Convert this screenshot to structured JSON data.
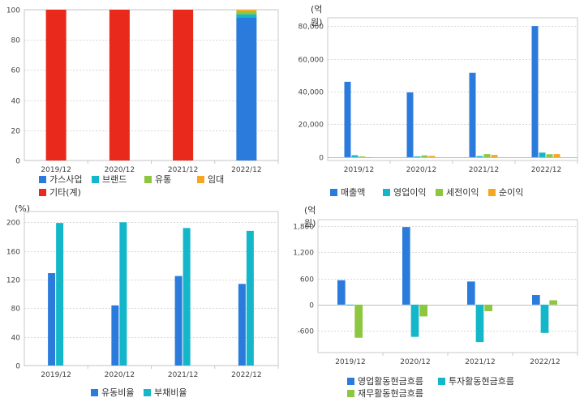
{
  "chart_data": [
    {
      "type": "bar",
      "stacked": true,
      "unit": "",
      "categories": [
        "2019/12",
        "2020/12",
        "2021/12",
        "2022/12"
      ],
      "ylim": [
        0,
        100
      ],
      "yticks": [
        0,
        20,
        40,
        60,
        80,
        100
      ],
      "grid": true,
      "legend_position": "bottom-left",
      "series": [
        {
          "name": "가스사업",
          "color": "#2b7bdc",
          "values": [
            0,
            0,
            0,
            95
          ]
        },
        {
          "name": "브랜드",
          "color": "#14b7c9",
          "values": [
            0,
            0,
            0,
            2
          ]
        },
        {
          "name": "유통",
          "color": "#8dc63f",
          "values": [
            0,
            0,
            0,
            2
          ]
        },
        {
          "name": "임대",
          "color": "#f5a623",
          "values": [
            0,
            0,
            0,
            1
          ]
        },
        {
          "name": "기타(계)",
          "color": "#e8291c",
          "values": [
            100,
            100,
            100,
            0
          ]
        }
      ]
    },
    {
      "type": "bar",
      "unit": "(억원)",
      "categories": [
        "2019/12",
        "2020/12",
        "2021/12",
        "2022/12"
      ],
      "ylim": [
        -2000,
        85000
      ],
      "yticks": [
        0,
        20000,
        40000,
        60000,
        80000
      ],
      "ytick_labels": [
        "0",
        "20,000",
        "40,000",
        "60,000",
        "80,000"
      ],
      "grid": true,
      "legend_position": "bottom-left",
      "series": [
        {
          "name": "매출액",
          "color": "#2b7bdc",
          "values": [
            46000,
            39500,
            51500,
            80000
          ]
        },
        {
          "name": "영업이익",
          "color": "#14b7c9",
          "values": [
            1200,
            500,
            700,
            2800
          ]
        },
        {
          "name": "세전이익",
          "color": "#8dc63f",
          "values": [
            400,
            1100,
            1900,
            1800
          ]
        },
        {
          "name": "순이익",
          "color": "#f5a623",
          "values": [
            -300,
            800,
            1400,
            1900
          ]
        }
      ]
    },
    {
      "type": "bar",
      "unit": "(%)",
      "categories": [
        "2019/12",
        "2020/12",
        "2021/12",
        "2022/12"
      ],
      "ylim": [
        0,
        215
      ],
      "yticks": [
        0,
        40,
        80,
        120,
        160,
        200
      ],
      "grid": true,
      "legend_position": "bottom-center",
      "series": [
        {
          "name": "유동비율",
          "color": "#2b7bdc",
          "values": [
            129,
            84,
            125,
            114
          ]
        },
        {
          "name": "부채비율",
          "color": "#14b7c9",
          "values": [
            199,
            200,
            192,
            188
          ]
        }
      ]
    },
    {
      "type": "bar",
      "unit": "(억원)",
      "categories": [
        "2019/12",
        "2020/12",
        "2021/12",
        "2022/12"
      ],
      "ylim": [
        -1100,
        1950
      ],
      "yticks": [
        -600,
        0,
        600,
        1200,
        1800
      ],
      "ytick_labels": [
        "-600",
        "0",
        "600",
        "1,200",
        "1,800"
      ],
      "grid": true,
      "legend_position": "bottom-center",
      "series": [
        {
          "name": "영업활동현금흐름",
          "color": "#2b7bdc",
          "values": [
            560,
            1780,
            530,
            220
          ]
        },
        {
          "name": "투자활동현금흐름",
          "color": "#14b7c9",
          "values": [
            -10,
            -740,
            -860,
            -650
          ]
        },
        {
          "name": "재무활동현금흐름",
          "color": "#8dc63f",
          "values": [
            -760,
            -270,
            -150,
            100
          ]
        }
      ]
    }
  ]
}
